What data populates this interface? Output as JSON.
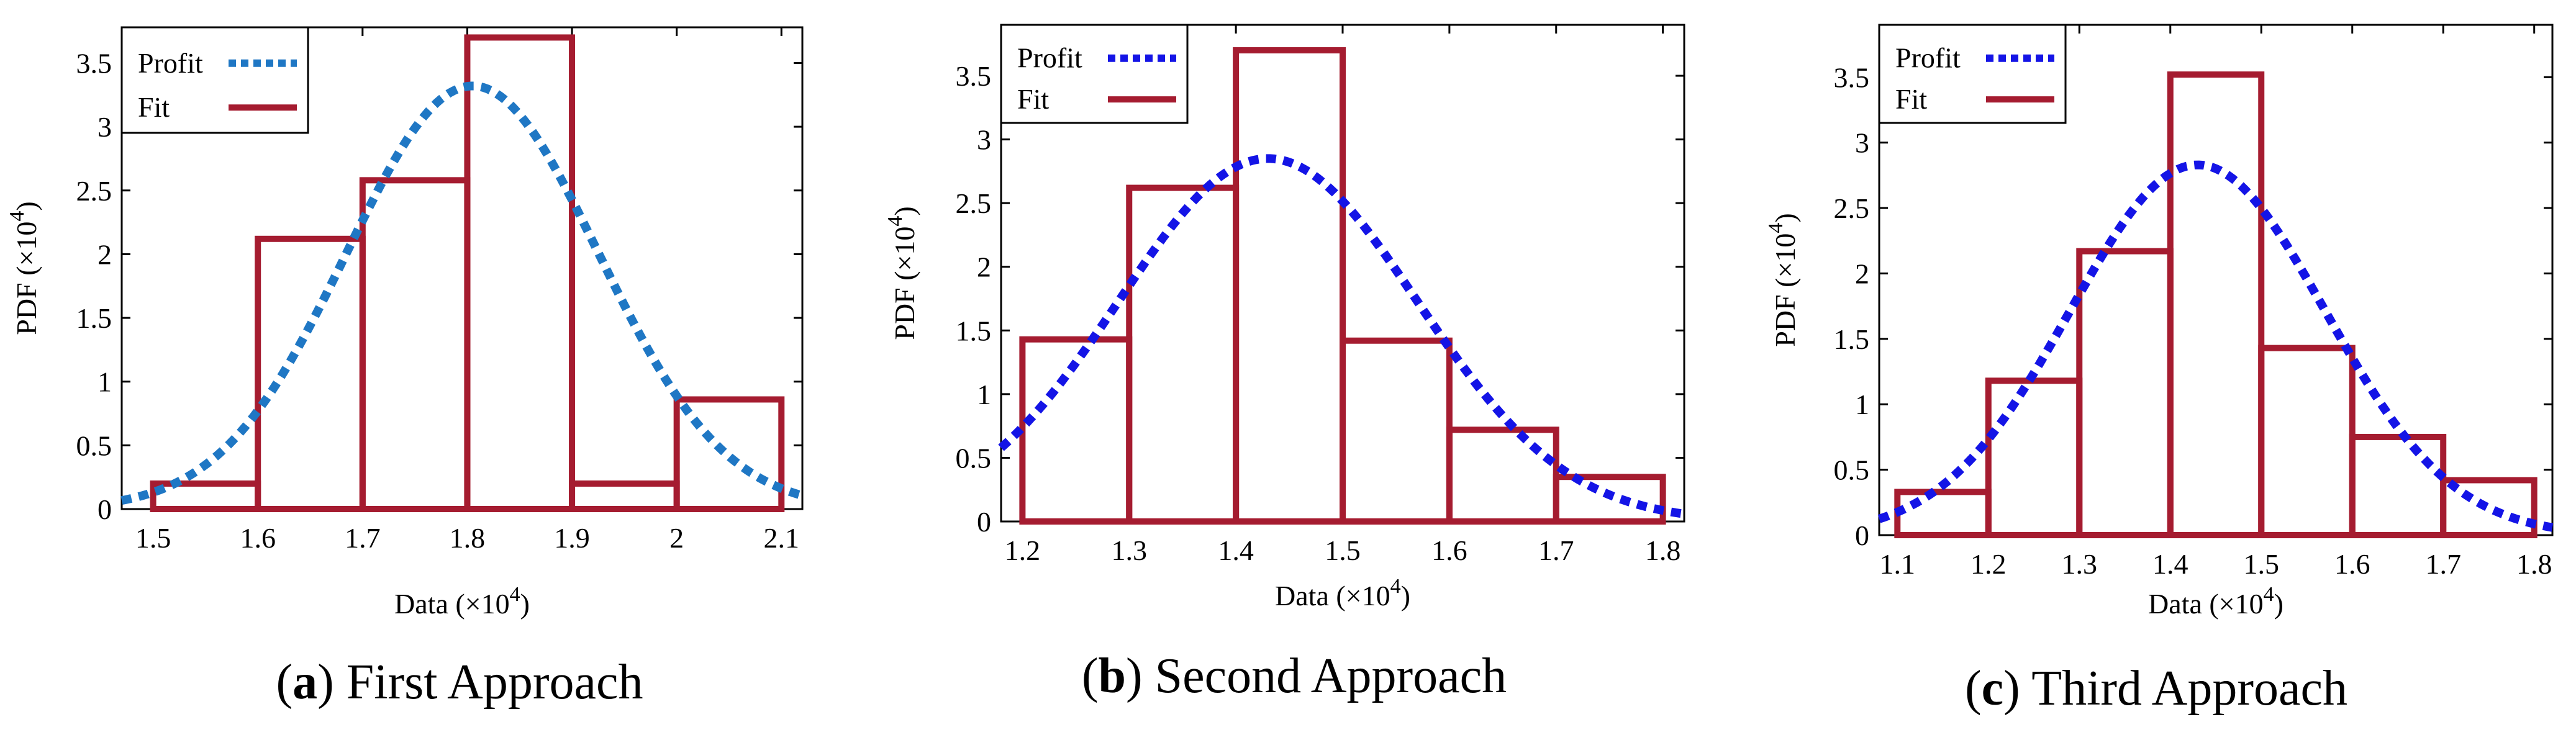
{
  "chart_data": [
    {
      "type": "bar",
      "panel_label": "a",
      "caption": "First Approach",
      "xlabel": "Data (×10",
      "xlabel_exp": "4",
      "xlabel_close": ")",
      "ylabel": "PDF (×10",
      "ylabel_exp": "4",
      "ylabel_close": ")",
      "xlim": [
        1.47,
        2.12
      ],
      "ylim": [
        0,
        3.78
      ],
      "xticks": [
        1.5,
        1.6,
        1.7,
        1.8,
        1.9,
        2.0,
        2.1
      ],
      "xtick_labels": [
        "1.5",
        "1.6",
        "1.7",
        "1.8",
        "1.9",
        "2",
        "2.1"
      ],
      "yticks": [
        0,
        0.5,
        1,
        1.5,
        2,
        2.5,
        3,
        3.5
      ],
      "ytick_labels": [
        "0",
        "0.5",
        "1",
        "1.5",
        "2",
        "2.5",
        "3",
        "3.5"
      ],
      "bin_edges": [
        1.5,
        1.6,
        1.7,
        1.8,
        1.9,
        2.0,
        2.1
      ],
      "bin_values": [
        0.2,
        2.12,
        2.58,
        3.7,
        0.2,
        0.86
      ],
      "profit_curve": {
        "mean": 1.805,
        "sd": 0.12,
        "peak": 3.32,
        "x_range": [
          1.47,
          2.12
        ]
      },
      "legend": {
        "position": "top-left",
        "entries": [
          "Profit",
          "Fit"
        ]
      },
      "colors": {
        "bars": "#a51c30",
        "curve": "#1f77c4"
      }
    },
    {
      "type": "bar",
      "panel_label": "b",
      "caption": "Second Approach",
      "xlabel": "Data (×10",
      "xlabel_exp": "4",
      "xlabel_close": ")",
      "ylabel": "PDF (×10",
      "ylabel_exp": "4",
      "ylabel_close": ")",
      "xlim": [
        1.18,
        1.82
      ],
      "ylim": [
        0,
        3.9
      ],
      "xticks": [
        1.2,
        1.3,
        1.4,
        1.5,
        1.6,
        1.7,
        1.8
      ],
      "xtick_labels": [
        "1.2",
        "1.3",
        "1.4",
        "1.5",
        "1.6",
        "1.7",
        "1.8"
      ],
      "yticks": [
        0,
        0.5,
        1,
        1.5,
        2,
        2.5,
        3,
        3.5
      ],
      "ytick_labels": [
        "0",
        "0.5",
        "1",
        "1.5",
        "2",
        "2.5",
        "3",
        "3.5"
      ],
      "bin_edges": [
        1.2,
        1.3,
        1.4,
        1.5,
        1.6,
        1.7,
        1.8
      ],
      "bin_values": [
        1.43,
        2.62,
        3.7,
        1.42,
        0.72,
        0.35
      ],
      "profit_curve": {
        "mean": 1.43,
        "sd": 0.14,
        "peak": 2.85,
        "x_range": [
          1.18,
          1.82
        ]
      },
      "legend": {
        "position": "top-left",
        "entries": [
          "Profit",
          "Fit"
        ]
      },
      "colors": {
        "bars": "#a51c30",
        "curve": "#1414e6"
      }
    },
    {
      "type": "bar",
      "panel_label": "c",
      "caption": "Third Approach",
      "xlabel": "Data (×10",
      "xlabel_exp": "4",
      "xlabel_close": ")",
      "ylabel": "PDF (×10",
      "ylabel_exp": "4",
      "ylabel_close": ")",
      "xlim": [
        1.08,
        1.82
      ],
      "ylim": [
        0,
        3.9
      ],
      "xticks": [
        1.1,
        1.2,
        1.3,
        1.4,
        1.5,
        1.6,
        1.7,
        1.8
      ],
      "xtick_labels": [
        "1.1",
        "1.2",
        "1.3",
        "1.4",
        "1.5",
        "1.6",
        "1.7",
        "1.8"
      ],
      "yticks": [
        0,
        0.5,
        1,
        1.5,
        2,
        2.5,
        3,
        3.5
      ],
      "ytick_labels": [
        "0",
        "0.5",
        "1",
        "1.5",
        "2",
        "2.5",
        "3",
        "3.5"
      ],
      "bin_edges": [
        1.1,
        1.2,
        1.3,
        1.4,
        1.5,
        1.6,
        1.7,
        1.8
      ],
      "bin_values": [
        0.33,
        1.18,
        2.17,
        3.52,
        1.43,
        0.75,
        0.42
      ],
      "profit_curve": {
        "mean": 1.43,
        "sd": 0.14,
        "peak": 2.83,
        "x_range": [
          1.08,
          1.82
        ]
      },
      "legend": {
        "position": "top-left",
        "entries": [
          "Profit",
          "Fit"
        ]
      },
      "colors": {
        "bars": "#a51c30",
        "curve": "#1414e6"
      }
    }
  ]
}
